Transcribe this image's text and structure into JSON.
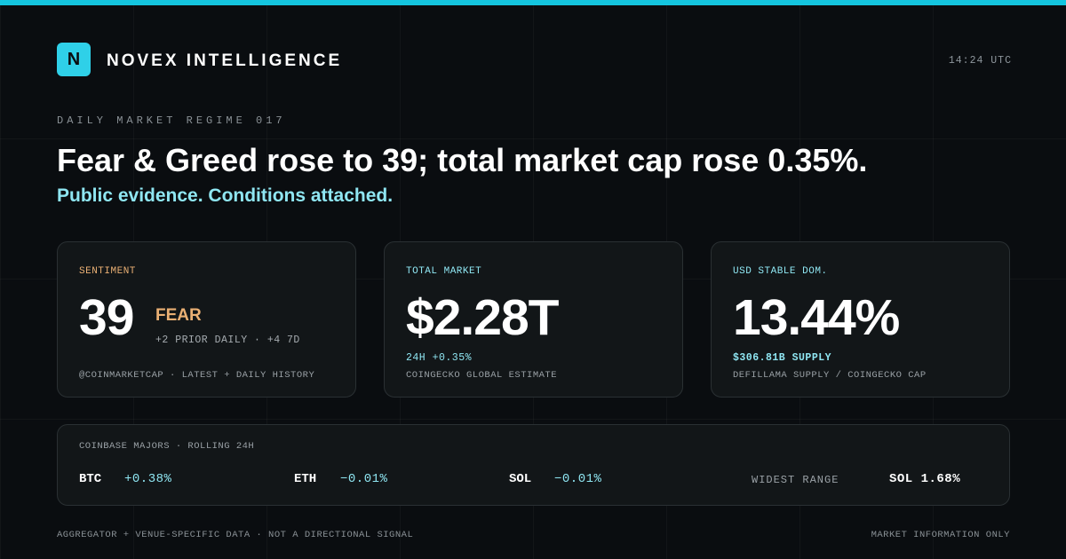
{
  "colors": {
    "accent": "#14c5df",
    "cyan_text": "#8fe6f2",
    "fear": "#eab074",
    "background": "#0a0d10",
    "card": "#121618"
  },
  "header": {
    "logo_letter": "N",
    "brand": "NOVEX INTELLIGENCE",
    "time": "14:24 UTC"
  },
  "hero": {
    "kicker": "DAILY MARKET REGIME 017",
    "headline": "Fear & Greed rose to 39; total market cap rose 0.35%.",
    "subhead": "Public evidence. Conditions attached."
  },
  "cards": {
    "sentiment": {
      "label": "SENTIMENT",
      "value": "39",
      "state": "FEAR",
      "delta": "+2 PRIOR DAILY · +4 7D",
      "source": "@COINMARKETCAP · LATEST + DAILY HISTORY"
    },
    "total_market": {
      "label": "TOTAL MARKET",
      "value": "$2.28T",
      "change": "24H +0.35%",
      "source": "COINGECKO GLOBAL ESTIMATE"
    },
    "stable_dom": {
      "label": "USD STABLE DOM.",
      "value": "13.44%",
      "supply": "$306.81B SUPPLY",
      "source": "DEFILLAMA SUPPLY / COINGECKO CAP"
    }
  },
  "majors": {
    "label": "COINBASE MAJORS · ROLLING 24H",
    "assets": [
      {
        "symbol": "BTC",
        "change": "+0.38%"
      },
      {
        "symbol": "ETH",
        "change": "−0.01%"
      },
      {
        "symbol": "SOL",
        "change": "−0.01%"
      }
    ],
    "widest_range_label": "WIDEST RANGE",
    "widest_range_value": "SOL 1.68%"
  },
  "footer": {
    "left": "AGGREGATOR + VENUE-SPECIFIC DATA · NOT A DIRECTIONAL SIGNAL",
    "right": "MARKET INFORMATION ONLY"
  }
}
